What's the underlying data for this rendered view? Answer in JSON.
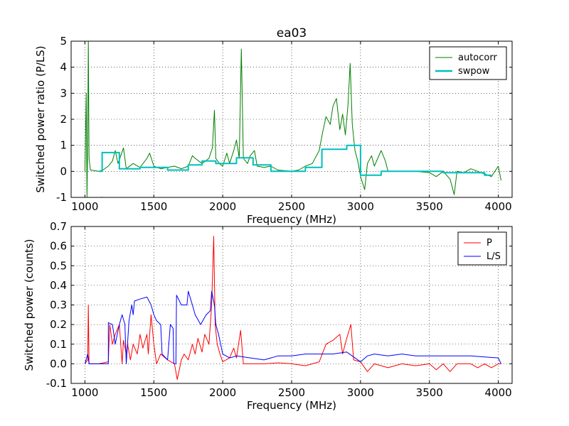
{
  "chart_data": [
    {
      "type": "line",
      "title": "ea03",
      "xlabel": "Frequency (MHz)",
      "ylabel": "Switched power ratio (P/LS)",
      "xlim": [
        900,
        4100
      ],
      "ylim": [
        -1,
        5
      ],
      "xticks": [
        1000,
        1500,
        2000,
        2500,
        3000,
        3500,
        4000
      ],
      "yticks": [
        -1,
        0,
        1,
        2,
        3,
        4,
        5
      ],
      "grid": true,
      "legend": "top-right",
      "series": [
        {
          "name": "autocorr",
          "color": "#007f00",
          "points": [
            [
              1000,
              0
            ],
            [
              1010,
              3.0
            ],
            [
              1015,
              -1
            ],
            [
              1020,
              1.2
            ],
            [
              1025,
              5
            ],
            [
              1030,
              0.5
            ],
            [
              1040,
              0.05
            ],
            [
              1100,
              0
            ],
            [
              1130,
              0.05
            ],
            [
              1170,
              0.2
            ],
            [
              1200,
              0.4
            ],
            [
              1220,
              0.8
            ],
            [
              1240,
              0.3
            ],
            [
              1260,
              0.6
            ],
            [
              1280,
              0.9
            ],
            [
              1300,
              0.1
            ],
            [
              1350,
              0.3
            ],
            [
              1400,
              0.15
            ],
            [
              1450,
              0.5
            ],
            [
              1470,
              0.7
            ],
            [
              1500,
              0.2
            ],
            [
              1550,
              0.1
            ],
            [
              1600,
              0.15
            ],
            [
              1650,
              0.2
            ],
            [
              1700,
              0.1
            ],
            [
              1750,
              0.2
            ],
            [
              1780,
              0.6
            ],
            [
              1800,
              0.5
            ],
            [
              1850,
              0.3
            ],
            [
              1900,
              0.5
            ],
            [
              1925,
              0.9
            ],
            [
              1940,
              2.35
            ],
            [
              1950,
              0.5
            ],
            [
              1975,
              0.3
            ],
            [
              2000,
              0.2
            ],
            [
              2030,
              0.7
            ],
            [
              2050,
              0.3
            ],
            [
              2080,
              0.8
            ],
            [
              2100,
              1.2
            ],
            [
              2120,
              0.5
            ],
            [
              2135,
              4.7
            ],
            [
              2150,
              0.5
            ],
            [
              2180,
              0.3
            ],
            [
              2200,
              0.6
            ],
            [
              2230,
              0.8
            ],
            [
              2250,
              0.2
            ],
            [
              2300,
              0.15
            ],
            [
              2350,
              0.2
            ],
            [
              2400,
              0.05
            ],
            [
              2500,
              0
            ],
            [
              2550,
              0.05
            ],
            [
              2600,
              0.2
            ],
            [
              2650,
              0.3
            ],
            [
              2700,
              0.8
            ],
            [
              2725,
              1.5
            ],
            [
              2750,
              2.1
            ],
            [
              2780,
              1.8
            ],
            [
              2800,
              2.5
            ],
            [
              2825,
              2.8
            ],
            [
              2850,
              1.6
            ],
            [
              2870,
              2.2
            ],
            [
              2890,
              1.4
            ],
            [
              2910,
              2.6
            ],
            [
              2925,
              4.15
            ],
            [
              2940,
              1.8
            ],
            [
              2960,
              0.8
            ],
            [
              2980,
              0.4
            ],
            [
              3000,
              -0.2
            ],
            [
              3030,
              -0.7
            ],
            [
              3050,
              0.3
            ],
            [
              3080,
              0.6
            ],
            [
              3100,
              0.2
            ],
            [
              3150,
              0.8
            ],
            [
              3180,
              0.4
            ],
            [
              3200,
              0
            ],
            [
              3300,
              0
            ],
            [
              3400,
              0
            ],
            [
              3500,
              -0.05
            ],
            [
              3550,
              -0.2
            ],
            [
              3600,
              0
            ],
            [
              3650,
              -0.3
            ],
            [
              3680,
              -0.9
            ],
            [
              3700,
              0
            ],
            [
              3750,
              -0.05
            ],
            [
              3800,
              0.1
            ],
            [
              3850,
              0
            ],
            [
              3900,
              -0.1
            ],
            [
              3950,
              -0.2
            ],
            [
              4000,
              0.2
            ],
            [
              4020,
              -0.35
            ]
          ]
        },
        {
          "name": "swpow",
          "color": "#00bfbf",
          "points": [
            [
              1100,
              0
            ],
            [
              1125,
              0
            ],
            [
              1125,
              0.72
            ],
            [
              1250,
              0.72
            ],
            [
              1250,
              0.1
            ],
            [
              1400,
              0.1
            ],
            [
              1400,
              0.15
            ],
            [
              1600,
              0.15
            ],
            [
              1600,
              0.05
            ],
            [
              1750,
              0.05
            ],
            [
              1750,
              0.25
            ],
            [
              1850,
              0.25
            ],
            [
              1850,
              0.4
            ],
            [
              1950,
              0.4
            ],
            [
              1950,
              0.3
            ],
            [
              2100,
              0.3
            ],
            [
              2100,
              0.52
            ],
            [
              2220,
              0.52
            ],
            [
              2220,
              0.25
            ],
            [
              2350,
              0.25
            ],
            [
              2350,
              0
            ],
            [
              2600,
              0
            ],
            [
              2600,
              0.15
            ],
            [
              2720,
              0.15
            ],
            [
              2720,
              0.85
            ],
            [
              2900,
              0.85
            ],
            [
              2900,
              1.0
            ],
            [
              3000,
              1.0
            ],
            [
              3000,
              -0.15
            ],
            [
              3150,
              -0.15
            ],
            [
              3150,
              0
            ],
            [
              3600,
              0
            ],
            [
              3600,
              -0.05
            ],
            [
              3900,
              -0.05
            ],
            [
              3900,
              -0.15
            ],
            [
              3950,
              -0.15
            ]
          ],
          "extra_segments": [
            [
              [
                1120,
                -1
              ],
              [
                1125,
                -1
              ]
            ]
          ]
        }
      ]
    },
    {
      "type": "line",
      "title": "",
      "xlabel": "Frequency (MHz)",
      "ylabel": "Switched power (counts)",
      "xlim": [
        900,
        4100
      ],
      "ylim": [
        -0.1,
        0.7
      ],
      "xticks": [
        1000,
        1500,
        2000,
        2500,
        3000,
        3500,
        4000
      ],
      "yticks": [
        -0.1,
        0.0,
        0.1,
        0.2,
        0.3,
        0.4,
        0.5,
        0.6,
        0.7
      ],
      "grid": true,
      "legend": "top-right",
      "series": [
        {
          "name": "P",
          "color": "#ff0000",
          "points": [
            [
              1000,
              0
            ],
            [
              1010,
              0.01
            ],
            [
              1020,
              0.02
            ],
            [
              1025,
              0.3
            ],
            [
              1030,
              0
            ],
            [
              1100,
              0
            ],
            [
              1170,
              0.01
            ],
            [
              1180,
              0.2
            ],
            [
              1200,
              0.1
            ],
            [
              1220,
              0.15
            ],
            [
              1250,
              0.2
            ],
            [
              1270,
              0
            ],
            [
              1280,
              0.12
            ],
            [
              1300,
              0.05
            ],
            [
              1310,
              0.1
            ],
            [
              1330,
              0.02
            ],
            [
              1350,
              0.1
            ],
            [
              1380,
              0.05
            ],
            [
              1400,
              0.15
            ],
            [
              1420,
              0.08
            ],
            [
              1450,
              0.15
            ],
            [
              1460,
              0.05
            ],
            [
              1480,
              0.25
            ],
            [
              1500,
              0.1
            ],
            [
              1520,
              0
            ],
            [
              1550,
              0.05
            ],
            [
              1600,
              0.02
            ],
            [
              1650,
              0
            ],
            [
              1670,
              -0.08
            ],
            [
              1700,
              0.02
            ],
            [
              1720,
              0.05
            ],
            [
              1750,
              0.02
            ],
            [
              1780,
              0.1
            ],
            [
              1800,
              0.05
            ],
            [
              1820,
              0.13
            ],
            [
              1850,
              0.06
            ],
            [
              1870,
              0.15
            ],
            [
              1900,
              0.1
            ],
            [
              1920,
              0.3
            ],
            [
              1935,
              0.65
            ],
            [
              1945,
              0.2
            ],
            [
              1960,
              0.1
            ],
            [
              1980,
              0.05
            ],
            [
              2000,
              0.01
            ],
            [
              2050,
              0.03
            ],
            [
              2080,
              0.08
            ],
            [
              2100,
              0.03
            ],
            [
              2130,
              0.17
            ],
            [
              2150,
              0
            ],
            [
              2200,
              0
            ],
            [
              2300,
              0
            ],
            [
              2400,
              0.005
            ],
            [
              2500,
              0
            ],
            [
              2600,
              -0.01
            ],
            [
              2700,
              0.01
            ],
            [
              2750,
              0.1
            ],
            [
              2800,
              0.12
            ],
            [
              2850,
              0.15
            ],
            [
              2870,
              0.05
            ],
            [
              2900,
              0.13
            ],
            [
              2930,
              0.2
            ],
            [
              2950,
              0.02
            ],
            [
              3000,
              0.01
            ],
            [
              3050,
              -0.04
            ],
            [
              3100,
              0
            ],
            [
              3200,
              -0.02
            ],
            [
              3300,
              0
            ],
            [
              3400,
              -0.01
            ],
            [
              3500,
              0
            ],
            [
              3550,
              -0.03
            ],
            [
              3600,
              0
            ],
            [
              3650,
              -0.04
            ],
            [
              3700,
              0
            ],
            [
              3800,
              0
            ],
            [
              3850,
              -0.02
            ],
            [
              3900,
              0
            ],
            [
              3950,
              -0.02
            ],
            [
              4000,
              0
            ],
            [
              4020,
              0
            ]
          ]
        },
        {
          "name": "L/S",
          "color": "#0000ff",
          "points": [
            [
              1000,
              0
            ],
            [
              1020,
              0.05
            ],
            [
              1030,
              0
            ],
            [
              1170,
              0
            ],
            [
              1170,
              0.21
            ],
            [
              1200,
              0.2
            ],
            [
              1220,
              0.1
            ],
            [
              1250,
              0.2
            ],
            [
              1270,
              0.25
            ],
            [
              1290,
              0.2
            ],
            [
              1300,
              0
            ],
            [
              1320,
              0.22
            ],
            [
              1340,
              0.3
            ],
            [
              1350,
              0.25
            ],
            [
              1360,
              0.32
            ],
            [
              1400,
              0.33
            ],
            [
              1450,
              0.34
            ],
            [
              1480,
              0.3
            ],
            [
              1500,
              0.25
            ],
            [
              1520,
              0.22
            ],
            [
              1550,
              0.2
            ],
            [
              1560,
              0.05
            ],
            [
              1600,
              0.02
            ],
            [
              1620,
              0.2
            ],
            [
              1640,
              0.18
            ],
            [
              1645,
              0
            ],
            [
              1660,
              0
            ],
            [
              1665,
              0.35
            ],
            [
              1700,
              0.3
            ],
            [
              1740,
              0.3
            ],
            [
              1750,
              0.37
            ],
            [
              1780,
              0.3
            ],
            [
              1800,
              0.25
            ],
            [
              1840,
              0.2
            ],
            [
              1880,
              0.25
            ],
            [
              1910,
              0.27
            ],
            [
              1920,
              0.37
            ],
            [
              1940,
              0.3
            ],
            [
              1950,
              0.2
            ],
            [
              1970,
              0.15
            ],
            [
              2000,
              0.05
            ],
            [
              2050,
              0.03
            ],
            [
              2100,
              0.04
            ],
            [
              2200,
              0.03
            ],
            [
              2300,
              0.02
            ],
            [
              2400,
              0.04
            ],
            [
              2500,
              0.04
            ],
            [
              2600,
              0.05
            ],
            [
              2700,
              0.05
            ],
            [
              2800,
              0.05
            ],
            [
              2900,
              0.06
            ],
            [
              3000,
              0.01
            ],
            [
              3050,
              0.04
            ],
            [
              3100,
              0.05
            ],
            [
              3200,
              0.04
            ],
            [
              3300,
              0.05
            ],
            [
              3400,
              0.04
            ],
            [
              3500,
              0.04
            ],
            [
              3600,
              0.04
            ],
            [
              3700,
              0.04
            ],
            [
              3800,
              0.04
            ],
            [
              3900,
              0.035
            ],
            [
              4000,
              0.03
            ],
            [
              4020,
              0
            ]
          ]
        }
      ]
    }
  ]
}
